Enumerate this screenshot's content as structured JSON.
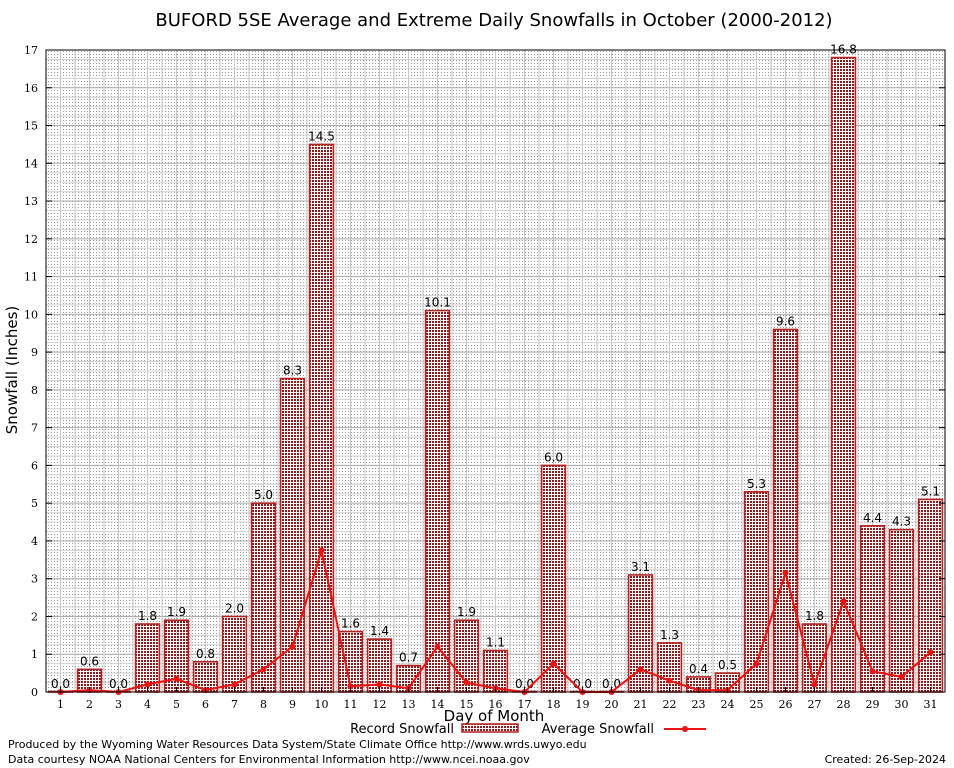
{
  "chart_data": {
    "type": "bar",
    "title": "BUFORD 5SE Average and Extreme Daily Snowfalls in October (2000-2012)",
    "xlabel": "Day of Month",
    "ylabel": "Snowfall (Inches)",
    "ylim": [
      0,
      17
    ],
    "yticks": [
      0,
      1,
      2,
      3,
      4,
      5,
      6,
      7,
      8,
      9,
      10,
      11,
      12,
      13,
      14,
      15,
      16,
      17
    ],
    "grid": true,
    "categories": [
      "1",
      "2",
      "3",
      "4",
      "5",
      "6",
      "7",
      "8",
      "9",
      "10",
      "11",
      "12",
      "13",
      "14",
      "15",
      "16",
      "17",
      "18",
      "19",
      "20",
      "21",
      "22",
      "23",
      "24",
      "25",
      "26",
      "27",
      "28",
      "29",
      "30",
      "31"
    ],
    "series": [
      {
        "name": "Record Snowfall",
        "type": "bar",
        "color": "#b22222",
        "values": [
          0.0,
          0.6,
          0.0,
          1.8,
          1.9,
          0.8,
          2.0,
          5.0,
          8.3,
          14.5,
          1.6,
          1.4,
          0.7,
          10.1,
          1.9,
          1.1,
          0.0,
          6.0,
          0.0,
          0.0,
          3.1,
          1.3,
          0.4,
          0.5,
          5.3,
          9.6,
          1.8,
          16.8,
          4.4,
          4.3,
          5.1
        ],
        "labels": [
          "0.0",
          "0.6",
          "0.0",
          "1.8",
          "1.9",
          "0.8",
          "2.0",
          "5.0",
          "8.3",
          "14.5",
          "1.6",
          "1.4",
          "0.7",
          "10.1",
          "1.9",
          "1.1",
          "0.0",
          "6.0",
          "0.0",
          "0.0",
          "3.1",
          "1.3",
          "0.4",
          "0.5",
          "5.3",
          "9.6",
          "1.8",
          "16.8",
          "4.4",
          "4.3",
          "5.1"
        ]
      },
      {
        "name": "Average Snowfall",
        "type": "line",
        "color": "#ee1111",
        "values": [
          0.0,
          0.05,
          0.0,
          0.2,
          0.35,
          0.05,
          0.2,
          0.6,
          1.2,
          3.75,
          0.15,
          0.2,
          0.1,
          1.2,
          0.25,
          0.1,
          0.0,
          0.75,
          0.0,
          0.0,
          0.6,
          0.3,
          0.05,
          0.05,
          0.75,
          3.15,
          0.2,
          2.4,
          0.55,
          0.4,
          1.05
        ]
      }
    ],
    "legend_position": "bottom"
  },
  "footer": {
    "produced_by": "Produced by the Wyoming Water Resources Data System/State Climate Office http://www.wrds.uwyo.edu",
    "data_courtesy": "Data courtesy NOAA National Centers for Environmental Information http://www.ncei.noaa.gov",
    "created": "Created:  26-Sep-2024"
  }
}
